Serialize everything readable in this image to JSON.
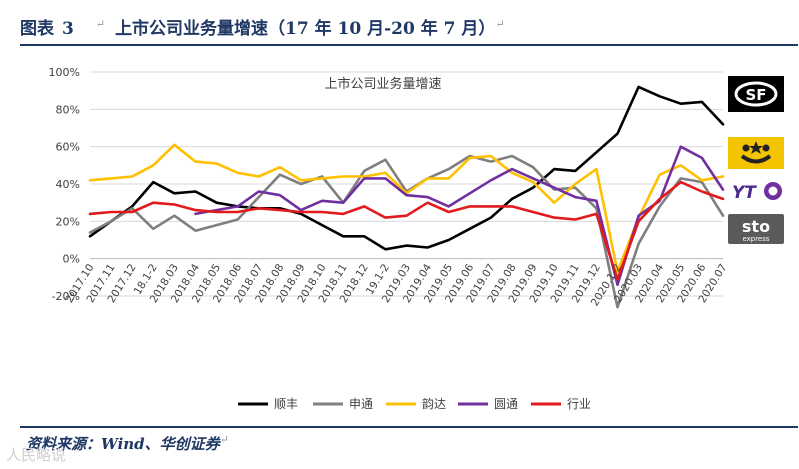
{
  "figure": {
    "label": "图表",
    "number": "3",
    "title": "上市公司业务量增速（17 年 10 月-20 年 7 月）",
    "para_mark": "↵",
    "source": "资料来源：Wind、华创证券",
    "watermark": "人民略说"
  },
  "logos": {
    "sf": "SF",
    "yt": "YT",
    "sto": "sto",
    "sto_sub": "express"
  },
  "colors": {
    "header": "#1f3864",
    "顺丰": "#000000",
    "申通": "#7f7f7f",
    "韵达": "#ffc000",
    "圆通": "#7030a0",
    "行业": "#e31a1c"
  },
  "chart_data": {
    "type": "line",
    "title": "上市公司业务量增速",
    "xlabel": "",
    "ylabel": "",
    "ylim": [
      -20,
      100
    ],
    "yticks": [
      -20,
      0,
      20,
      40,
      60,
      80,
      100
    ],
    "ytick_labels": [
      "-20%",
      "0%",
      "20%",
      "40%",
      "60%",
      "80%",
      "100%"
    ],
    "grid": true,
    "legend_position": "bottom",
    "categories": [
      "2017.10",
      "2017.11",
      "2017.12",
      "18.1-2",
      "2018.03",
      "2018.04",
      "2018.05",
      "2018.06",
      "2018.07",
      "2018.08",
      "2018.09",
      "2018.10",
      "2018.11",
      "2018.12",
      "19.1-2",
      "2019.03",
      "2019.04",
      "2019.05",
      "2019.06",
      "2019.07",
      "2019.08",
      "2019.09",
      "2019.10",
      "2019.11",
      "2019.12",
      "2020.1-2",
      "2020.03",
      "2020.04",
      "2020.05",
      "2020.06",
      "2020.07"
    ],
    "series": [
      {
        "name": "顺丰",
        "values": [
          12,
          20,
          28,
          41,
          35,
          36,
          30,
          28,
          27,
          27,
          24,
          18,
          12,
          12,
          5,
          7,
          6,
          10,
          16,
          22,
          32,
          38,
          48,
          47,
          57,
          67,
          92,
          87,
          83,
          84,
          72
        ]
      },
      {
        "name": "申通",
        "values": [
          14,
          20,
          27,
          16,
          23,
          15,
          18,
          21,
          33,
          45,
          40,
          44,
          30,
          47,
          53,
          36,
          43,
          48,
          55,
          52,
          55,
          49,
          37,
          38,
          27,
          -26,
          8,
          28,
          43,
          41,
          23
        ]
      },
      {
        "name": "韵达",
        "values": [
          42,
          43,
          44,
          50,
          61,
          52,
          51,
          46,
          44,
          49,
          42,
          43,
          44,
          44,
          46,
          35,
          43,
          43,
          54,
          55,
          46,
          41,
          30,
          40,
          48,
          -7,
          22,
          45,
          50,
          42,
          44
        ]
      },
      {
        "name": "圆通",
        "values": [
          null,
          null,
          null,
          null,
          null,
          24,
          26,
          28,
          36,
          34,
          26,
          31,
          30,
          43,
          43,
          34,
          33,
          28,
          35,
          42,
          48,
          43,
          38,
          33,
          31,
          -14,
          23,
          31,
          60,
          54,
          37
        ]
      },
      {
        "name": "行业",
        "values": [
          24,
          25,
          25,
          30,
          29,
          26,
          25,
          25,
          27,
          26,
          25,
          25,
          24,
          28,
          22,
          23,
          30,
          25,
          28,
          28,
          28,
          25,
          22,
          21,
          24,
          -11,
          20,
          32,
          41,
          36,
          32
        ]
      }
    ]
  }
}
